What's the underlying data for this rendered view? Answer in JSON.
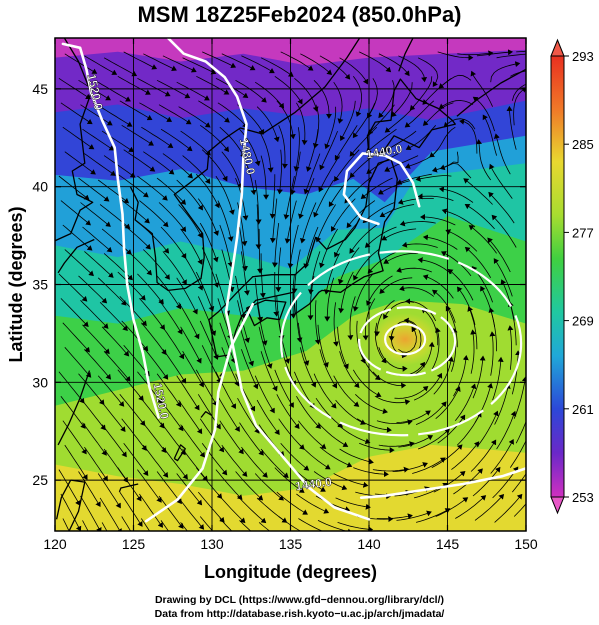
{
  "title": "MSM 18Z25Feb2024 (850.0hPa)",
  "map": {
    "xlabel": "Longitude (degrees)",
    "ylabel": "Latitude  (degrees)",
    "xlim": [
      120,
      150
    ],
    "ylim": [
      22.4,
      47.6
    ],
    "xticks": [
      120,
      125,
      130,
      135,
      140,
      145,
      150
    ],
    "yticks": [
      25,
      30,
      35,
      40,
      45
    ],
    "low_center": {
      "lon": 142.3,
      "lat": 32.2
    },
    "contours": [
      {
        "label": "1520.0",
        "lon": 122.3,
        "lat": 44.8
      },
      {
        "label": "1480.0",
        "lon": 132.0,
        "lat": 41.5
      },
      {
        "label": "1440.0",
        "lon": 141.0,
        "lat": 41.6
      },
      {
        "label": "1520.0",
        "lon": 126.5,
        "lat": 29.0
      },
      {
        "label": "1440.0",
        "lon": 136.5,
        "lat": 24.6
      }
    ]
  },
  "colorbar": {
    "ticks": [
      "293",
      "285",
      "277",
      "269",
      "261",
      "253"
    ],
    "min": 253,
    "max": 293
  },
  "colors": {
    "magenta": "#c028b8",
    "violet": "#6a28c8",
    "blue": "#2c48d8",
    "cyan": "#20a8d8",
    "teal": "#20c8a0",
    "green": "#40d040",
    "yellowgreen": "#a8dc30",
    "yellow": "#e8d830",
    "orange": "#f0a030"
  },
  "credits": [
    "Drawing by DCL (https://www.gfd−dennou.org/library/dcl/)",
    "Data from http://database.rish.kyoto−u.ac.jp/arch/jmadata/"
  ]
}
